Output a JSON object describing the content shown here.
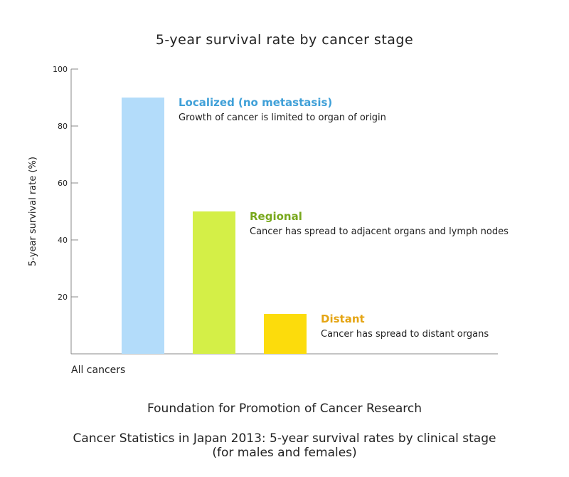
{
  "chart_data": {
    "type": "bar",
    "title": "5-year survival rate by cancer stage",
    "ylabel": "5-year survival rate (%)",
    "xlabel": "",
    "ylim": [
      0,
      100
    ],
    "yticks": [
      20,
      40,
      60,
      80,
      100
    ],
    "categories": [
      "All cancers"
    ],
    "series": [
      {
        "name": "Localized (no metastasis)",
        "description": "Growth of cancer is limited to organ of origin",
        "values": [
          90
        ],
        "color": "#b3dcfa",
        "label_color": "#3fa0d8"
      },
      {
        "name": "Regional",
        "description": "Cancer has spread to adjacent organs and lymph nodes",
        "values": [
          50
        ],
        "color": "#d4ef47",
        "label_color": "#78a81c"
      },
      {
        "name": "Distant",
        "description": "Cancer has spread to distant organs",
        "values": [
          14
        ],
        "color": "#fcdc0c",
        "label_color": "#e5a514"
      }
    ],
    "grid": false
  },
  "footer": {
    "source": "Foundation for Promotion of Cancer Research",
    "citation_line1": "Cancer Statistics in Japan 2013: 5-year survival rates by clinical stage",
    "citation_line2": "(for males and females)"
  }
}
